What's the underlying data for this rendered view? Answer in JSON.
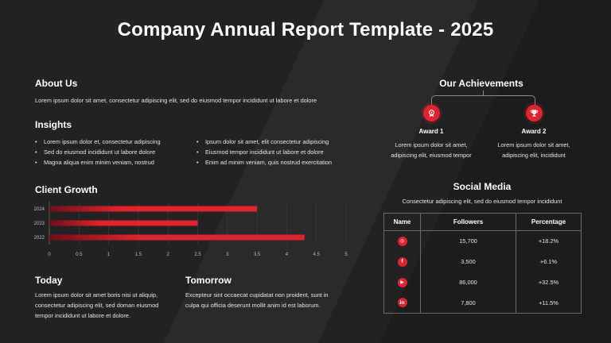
{
  "title": "Company Annual Report Template - 2025",
  "colors": {
    "accent": "#e0242f",
    "background": "#222222",
    "text": "#ffffff"
  },
  "about": {
    "heading": "About Us",
    "text": "Lorem ipsum dolor sit amet, consectetur adipiscing elit, sed do eiusmod tempor incididunt ut labore et dolore"
  },
  "insights": {
    "heading": "Insights",
    "left": [
      "Lorem ipsum dolor et, consectetur adipiscing",
      "Sed do eiusmod incididunt ut labore dolore",
      "Magna aliqua  enim minim veniam, nostrud"
    ],
    "right": [
      "Ipsum dolor sit amet, elit consectetur adipiscing",
      "Eiusmod tempor incididunt ut labore et dolore",
      "Enim ad minim veniam, quis nostrud exercitation"
    ]
  },
  "growth": {
    "heading": "Client Growth"
  },
  "chart_data": {
    "type": "bar",
    "orientation": "horizontal",
    "categories": [
      "2024",
      "2023",
      "2022"
    ],
    "values": [
      3.5,
      2.5,
      4.3
    ],
    "xlim": [
      0,
      5
    ],
    "xticks": [
      "0",
      "0.5",
      "1",
      "1.5",
      "2",
      "2.5",
      "3",
      "3.5",
      "4",
      "4.5",
      "5"
    ],
    "grid": true,
    "color": "#e0242f"
  },
  "today": {
    "heading": "Today",
    "text": "Lorem ipsum dolor sit amet boris nisi ut aliquip, consectetur adipiscing elit, sed doman eiusmod tempor incididunt ut labore et dolore."
  },
  "tomorrow": {
    "heading": "Tomorrow",
    "text": "Excepteur sint occaecat cupidatat non proident, sunt in culpa qui officia deserunt mollit anim id est laborum."
  },
  "achievements": {
    "heading": "Our Achievements",
    "awards": [
      {
        "name": "Award 1",
        "text": "Lorem ipsum dolor sit amet, adipiscing elit, eiusmod tempor",
        "icon": "medal-icon"
      },
      {
        "name": "Award 2",
        "text": "Lorem ipsum dolor sit amet, adipiscing elit, incididunt",
        "icon": "trophy-icon"
      }
    ]
  },
  "social": {
    "heading": "Social Media",
    "subtitle": "Consectetur adipiscing elit, sed do eiusmod tempor incididunt",
    "columns": [
      "Name",
      "Followers",
      "Percentage"
    ],
    "rows": [
      {
        "icon": "instagram-icon",
        "glyph": "◎",
        "followers": "15,700",
        "percentage": "+18.2%"
      },
      {
        "icon": "facebook-icon",
        "glyph": "f",
        "followers": "3,500",
        "percentage": "+6.1%"
      },
      {
        "icon": "youtube-icon",
        "glyph": "▶",
        "followers": "86,000",
        "percentage": "+32.5%"
      },
      {
        "icon": "linkedin-icon",
        "glyph": "in",
        "followers": "7,800",
        "percentage": "+11.5%"
      }
    ]
  }
}
